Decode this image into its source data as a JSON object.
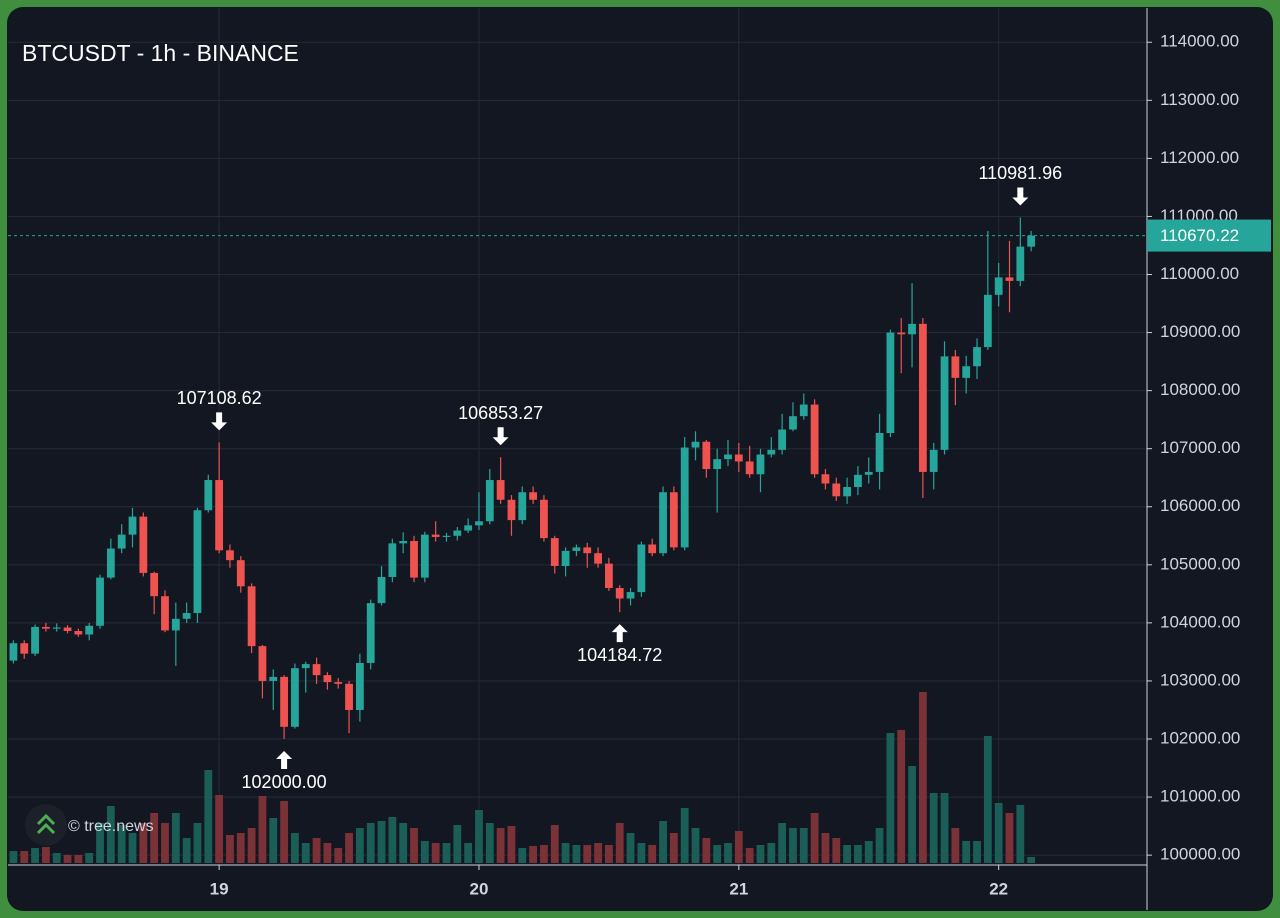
{
  "chart_data": {
    "type": "candlestick",
    "title": "BTCUSDT - 1h - BINANCE",
    "watermark": "© tree.news",
    "x": [
      5,
      6,
      7,
      8,
      9,
      10,
      11,
      12,
      13,
      14,
      15,
      16,
      17,
      18,
      19,
      20,
      21,
      22,
      23,
      24,
      25,
      26,
      27,
      28,
      29,
      30,
      31,
      32,
      33,
      34,
      35,
      36,
      37,
      38,
      39,
      40,
      41,
      42,
      43,
      44,
      45,
      46,
      47,
      48,
      49,
      50,
      51,
      52,
      53,
      54,
      55,
      56,
      57,
      58,
      59,
      60,
      61,
      62,
      63,
      64,
      65,
      66,
      67,
      68,
      69,
      70,
      71,
      72,
      73,
      74,
      75,
      76,
      77,
      78,
      79,
      80,
      81,
      82,
      83,
      84,
      85,
      86,
      87,
      88,
      89,
      90,
      91,
      92,
      93,
      94,
      95,
      96,
      97,
      98,
      99
    ],
    "open": [
      103350,
      103650,
      103470,
      103930,
      103900,
      103920,
      103860,
      103800,
      103950,
      104780,
      105280,
      105520,
      105830,
      104860,
      104460,
      103870,
      104070,
      104170,
      105940,
      106460,
      105250,
      105080,
      104630,
      103600,
      103000,
      103070,
      102210,
      103220,
      103290,
      103100,
      102980,
      102950,
      102500,
      103310,
      104340,
      104790,
      105370,
      105410,
      104780,
      105520,
      105480,
      105500,
      105590,
      105680,
      105750,
      106460,
      106120,
      105770,
      106250,
      106120,
      105460,
      104980,
      105240,
      105300,
      105200,
      105020,
      104600,
      104420,
      104530,
      105350,
      105200,
      106250,
      105300,
      107020,
      107120,
      106650,
      106820,
      106900,
      106780,
      106560,
      106900,
      106980,
      107330,
      107560,
      107760,
      106560,
      106400,
      106180,
      106340,
      106550,
      106600,
      107270,
      109000,
      108970,
      109150,
      106600,
      106980,
      108590,
      108220,
      108420,
      108750,
      109650,
      109950,
      109890,
      110480
    ],
    "high": [
      103700,
      103700,
      103970,
      104000,
      103990,
      103960,
      103900,
      104000,
      104830,
      105450,
      105700,
      105980,
      105900,
      104880,
      104560,
      104350,
      104350,
      105980,
      106550,
      107108.62,
      105350,
      105150,
      104680,
      103620,
      103200,
      103100,
      103300,
      103330,
      103400,
      103150,
      103050,
      103000,
      103470,
      104400,
      104980,
      105450,
      105560,
      105500,
      105570,
      105750,
      105550,
      105650,
      105800,
      106250,
      106650,
      106853.27,
      106200,
      106350,
      106350,
      106200,
      105500,
      105300,
      105350,
      105380,
      105300,
      105120,
      104650,
      104600,
      105400,
      105450,
      106350,
      106350,
      107200,
      107300,
      107150,
      107000,
      107150,
      107100,
      107050,
      107000,
      107200,
      107600,
      107800,
      107950,
      107850,
      106650,
      106500,
      106500,
      106700,
      106850,
      107600,
      109050,
      109250,
      109850,
      109250,
      107100,
      108850,
      108700,
      108600,
      108900,
      110750,
      110200,
      110580,
      110981.96,
      110750
    ],
    "low": [
      103300,
      103380,
      103430,
      103850,
      103850,
      103820,
      103760,
      103700,
      103900,
      104750,
      105200,
      105300,
      104800,
      104150,
      103840,
      103260,
      104000,
      104000,
      105900,
      105200,
      104950,
      104520,
      103480,
      102700,
      102500,
      102000,
      102180,
      102800,
      102950,
      102850,
      102870,
      102100,
      102300,
      103200,
      104300,
      104700,
      105200,
      104700,
      104700,
      105400,
      105400,
      105420,
      105550,
      105600,
      105700,
      106050,
      105500,
      105700,
      106050,
      105400,
      104850,
      104800,
      105150,
      104950,
      104950,
      104550,
      104184.72,
      104300,
      104450,
      105150,
      105150,
      105250,
      105250,
      106800,
      106500,
      105900,
      106700,
      106600,
      106500,
      106250,
      106850,
      106900,
      107300,
      107500,
      106500,
      106300,
      106100,
      106050,
      106200,
      106400,
      106300,
      107200,
      108300,
      108400,
      106150,
      106300,
      106900,
      107750,
      107950,
      108200,
      108700,
      109450,
      109350,
      109800,
      110400
    ],
    "close": [
      103650,
      103470,
      103930,
      103900,
      103920,
      103860,
      103800,
      103950,
      104780,
      105280,
      105520,
      105830,
      104860,
      104460,
      103870,
      104070,
      104170,
      105940,
      106460,
      105250,
      105080,
      104630,
      103600,
      103000,
      103070,
      102210,
      103220,
      103290,
      103100,
      102980,
      102950,
      102500,
      103310,
      104340,
      104790,
      105370,
      105410,
      104780,
      105520,
      105480,
      105500,
      105590,
      105680,
      105750,
      106460,
      106120,
      105770,
      106250,
      106120,
      105460,
      104980,
      105240,
      105300,
      105200,
      105020,
      104600,
      104420,
      104530,
      105350,
      105200,
      106250,
      105300,
      107020,
      107120,
      106650,
      106820,
      106900,
      106780,
      106560,
      106900,
      106980,
      107330,
      107560,
      107760,
      106560,
      106400,
      106180,
      106340,
      106550,
      106600,
      107270,
      109000,
      108970,
      109150,
      106600,
      106980,
      108590,
      108220,
      108420,
      108750,
      109650,
      109950,
      109890,
      110480,
      110670.22
    ],
    "volume": [
      12,
      12,
      15,
      16,
      10,
      8,
      8,
      10,
      40,
      57,
      38,
      30,
      40,
      50,
      40,
      50,
      25,
      40,
      93,
      68,
      28,
      30,
      35,
      67,
      45,
      62,
      30,
      20,
      25,
      20,
      15,
      30,
      35,
      40,
      42,
      46,
      40,
      35,
      22,
      20,
      20,
      38,
      20,
      53,
      40,
      35,
      37,
      15,
      17,
      18,
      38,
      20,
      18,
      18,
      20,
      18,
      40,
      30,
      20,
      18,
      42,
      30,
      55,
      35,
      25,
      18,
      20,
      32,
      15,
      18,
      20,
      40,
      35,
      35,
      50,
      30,
      25,
      18,
      18,
      22,
      35,
      130,
      133,
      97,
      171,
      70,
      70,
      35,
      22,
      22,
      127,
      60,
      50,
      58,
      6
    ],
    "xlim": [
      4.5,
      109.7
    ],
    "xticks": [
      {
        "value": 24,
        "label": "19"
      },
      {
        "value": 48,
        "label": "20"
      },
      {
        "value": 72,
        "label": "21"
      },
      {
        "value": 96,
        "label": "22"
      }
    ],
    "ylim": [
      99830,
      114590
    ],
    "yticks": [
      {
        "value": 100000,
        "label": "100000.00"
      },
      {
        "value": 101000,
        "label": "101000.00"
      },
      {
        "value": 102000,
        "label": "102000.00"
      },
      {
        "value": 103000,
        "label": "103000.00"
      },
      {
        "value": 104000,
        "label": "104000.00"
      },
      {
        "value": 105000,
        "label": "105000.00"
      },
      {
        "value": 106000,
        "label": "106000.00"
      },
      {
        "value": 107000,
        "label": "107000.00"
      },
      {
        "value": 108000,
        "label": "108000.00"
      },
      {
        "value": 109000,
        "label": "109000.00"
      },
      {
        "value": 110000,
        "label": "110000.00"
      },
      {
        "value": 111000,
        "label": "111000.00"
      },
      {
        "value": 112000,
        "label": "112000.00"
      },
      {
        "value": 113000,
        "label": "113000.00"
      },
      {
        "value": 114000,
        "label": "114000.00"
      }
    ],
    "grid": true,
    "up_color": "#26a69a",
    "down_color": "#ef5350",
    "volume_up_color": "#1b5e58",
    "volume_down_color": "#7b3236",
    "last_price": {
      "value": 110670.22,
      "label": "110670.22",
      "color": "#26a69a"
    },
    "annotations": [
      {
        "x": 24,
        "value": 107108.62,
        "label": "107108.62",
        "direction": "high"
      },
      {
        "x": 30,
        "value": 102000,
        "label": "102000.00",
        "direction": "low"
      },
      {
        "x": 50,
        "value": 106853.27,
        "label": "106853.27",
        "direction": "high"
      },
      {
        "x": 61,
        "value": 104184.72,
        "label": "104184.72",
        "direction": "low"
      },
      {
        "x": 98,
        "value": 110981.96,
        "label": "110981.96",
        "direction": "high"
      }
    ]
  }
}
